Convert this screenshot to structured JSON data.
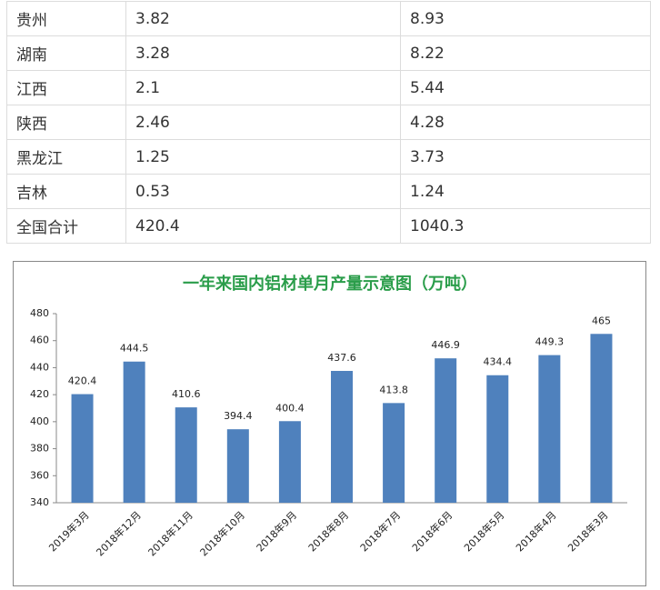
{
  "table": {
    "rows": [
      [
        "贵州",
        "3.82",
        "8.93"
      ],
      [
        "湖南",
        "3.28",
        "8.22"
      ],
      [
        "江西",
        "2.1",
        "5.44"
      ],
      [
        "陕西",
        "2.46",
        "4.28"
      ],
      [
        "黑龙江",
        "1.25",
        "3.73"
      ],
      [
        "吉林",
        "0.53",
        "1.24"
      ],
      [
        "全国合计",
        "420.4",
        "1040.3"
      ]
    ]
  },
  "chart_data": {
    "type": "bar",
    "title": "一年来国内铝材单月产量示意图（万吨）",
    "categories": [
      "2019年3月",
      "2018年12月",
      "2018年11月",
      "2018年10月",
      "2018年9月",
      "2018年8月",
      "2018年7月",
      "2018年6月",
      "2018年5月",
      "2018年4月",
      "2018年3月"
    ],
    "values": [
      420.4,
      444.5,
      410.6,
      394.4,
      400.4,
      437.6,
      413.8,
      446.9,
      434.4,
      449.3,
      465
    ],
    "color": "#4f81bd",
    "ylim": [
      340,
      480
    ],
    "yticks": [
      340,
      360,
      380,
      400,
      420,
      440,
      460,
      480
    ],
    "grid": false
  }
}
